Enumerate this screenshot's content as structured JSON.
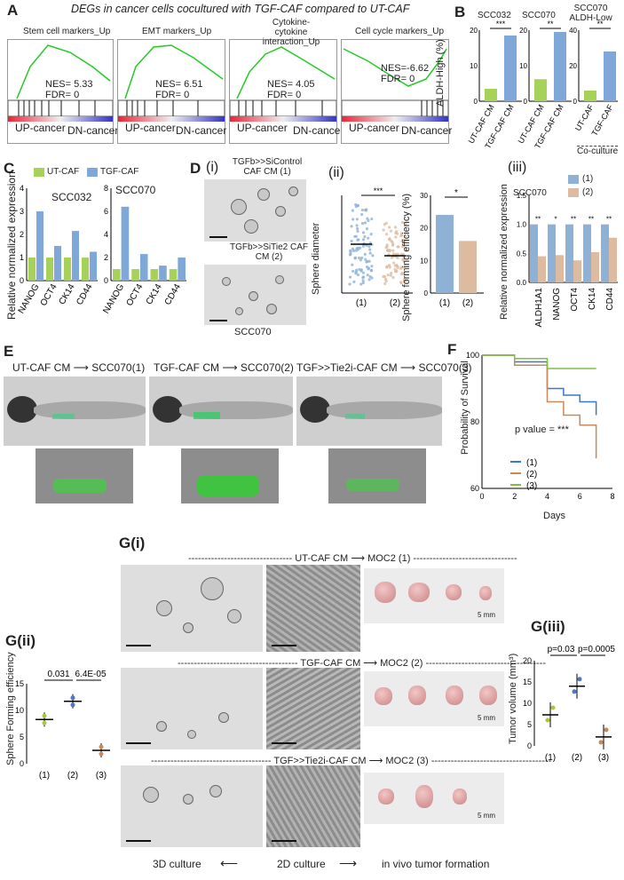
{
  "figure": {
    "panel_a": {
      "label": "A",
      "title": "DEGs in cancer cells cocultured with TGF-CAF compared to UT-CAF",
      "plots": [
        {
          "title": "Stem cell markers_Up",
          "nes": "NES= 5.33",
          "fdr": "FDR= 0"
        },
        {
          "title": "EMT markers_Up",
          "nes": "NES= 6.51",
          "fdr": "FDR= 0"
        },
        {
          "title": "Cytokine- cytokine interaction_Up",
          "nes": "NES= 4.05",
          "fdr": "FDR= 0"
        },
        {
          "title": "Cell cycle markers_Up",
          "nes": "NES=-6.62",
          "fdr": "FDR= 0"
        }
      ],
      "up_label": "UP-cancer",
      "dn_label": "DN-cancer"
    },
    "panel_b": {
      "label": "B",
      "ylabel": "ALDH-High (%)",
      "titles": [
        "SCC032",
        "SCC070",
        "SCC070 ALDH-Low"
      ],
      "categories": [
        "UT-CAF CM",
        "TGF-CAF CM"
      ],
      "cat3": [
        "UT-CAF",
        "TGF-CAF"
      ],
      "coculture": "Co-culture",
      "stars": [
        "***",
        "**",
        "**"
      ]
    },
    "panel_c": {
      "label": "C",
      "legend": [
        "UT-CAF",
        "TGF-CAF"
      ],
      "ylabel": "Relative normalized expression",
      "titles": [
        "SCC032",
        "SCC070"
      ],
      "genes": [
        "NANOG",
        "OCT4",
        "CK14",
        "CD44"
      ]
    },
    "panel_d": {
      "label": "D",
      "roman": [
        "(i)",
        "(ii)",
        "(iii)"
      ],
      "img_titles": [
        "TGFb>>SiControl CAF CM (1)",
        "TGFb>>SiTie2 CAF CM (2)"
      ],
      "img_caption": "SCC070",
      "sphere_ylabel": "Sphere diameter",
      "sphere_stars": "***",
      "eff_ylabel": "Sphere forming efficiency (%)",
      "eff_star": "*",
      "groups": [
        "(1)",
        "(2)"
      ],
      "iii_title": "SCC070",
      "iii_ylabel": "Relative normalized expression",
      "iii_genes": [
        "ALDH1A1",
        "NANOG",
        "OCT4",
        "CK14",
        "CD44"
      ],
      "iii_stars": [
        "**",
        "*",
        "**",
        "**",
        "**"
      ],
      "iii_legend": [
        "(1)",
        "(2)"
      ]
    },
    "panel_e": {
      "label": "E",
      "conditions": [
        "UT-CAF CM",
        "TGF-CAF CM",
        "TGF>>Tie2i-CAF CM"
      ],
      "arrow": "⟶",
      "targets": [
        "SCC070(1)",
        "SCC070(2)",
        "SCC070(3)"
      ]
    },
    "panel_f": {
      "label": "F",
      "ylabel": "Probability of Survival",
      "xlabel": "Days",
      "pval": "p value = ***",
      "legend": [
        "(1)",
        "(2)",
        "(3)"
      ]
    },
    "panel_g": {
      "label_i": "G(i)",
      "label_ii": "G(ii)",
      "label_iii": "G(iii)",
      "rows": [
        "UT-CAF CM",
        "TGF-CAF CM",
        "TGF>>Tie2i-CAF CM"
      ],
      "row_targets": [
        "MOC2 (1)",
        "MOC2 (2)",
        "MOC2 (3)"
      ],
      "arrow": "⟶",
      "scale": "5 mm",
      "bottom": [
        "3D culture",
        "2D culture",
        "in vivo tumor formation"
      ],
      "gii_ylabel": "Sphere Forming efficiency",
      "gii_p": [
        "0.031",
        "6.4E-05"
      ],
      "groups3": [
        "(1)",
        "(2)",
        "(3)"
      ],
      "giii_ylabel": "Tumor volume (mm³)",
      "giii_p": [
        "p=0.03",
        "p=0.0005"
      ]
    },
    "colors": {
      "ut": "#a6d25a",
      "tgf": "#7fa8d8",
      "d1": "#8fb1d6",
      "d2": "#ddbba0",
      "f1": "#3a78c8",
      "f2": "#c9895a",
      "f3": "#7cc23d"
    }
  },
  "chart_data": [
    {
      "id": "B-SCC032",
      "type": "bar",
      "categories": [
        "UT-CAF CM",
        "TGF-CAF CM"
      ],
      "values": [
        3.5,
        18.5
      ],
      "ylim": [
        0,
        20
      ]
    },
    {
      "id": "B-SCC070",
      "type": "bar",
      "categories": [
        "UT-CAF CM",
        "TGF-CAF CM"
      ],
      "values": [
        6.2,
        19.5
      ],
      "ylim": [
        0,
        20
      ]
    },
    {
      "id": "B-ALDH-Low",
      "type": "bar",
      "categories": [
        "UT-CAF",
        "TGF-CAF"
      ],
      "values": [
        6.0,
        28.0
      ],
      "ylim": [
        0,
        40
      ]
    },
    {
      "id": "C-SCC032",
      "type": "bar",
      "categories": [
        "NANOG",
        "OCT4",
        "CK14",
        "CD44"
      ],
      "series": [
        {
          "name": "UT-CAF",
          "values": [
            1.0,
            1.0,
            1.0,
            1.0
          ]
        },
        {
          "name": "TGF-CAF",
          "values": [
            3.0,
            1.5,
            2.15,
            1.25
          ]
        }
      ],
      "ylim": [
        0,
        4
      ]
    },
    {
      "id": "C-SCC070",
      "type": "bar",
      "categories": [
        "NANOG",
        "OCT4",
        "CK14",
        "CD44"
      ],
      "series": [
        {
          "name": "UT-CAF",
          "values": [
            1.0,
            1.0,
            1.0,
            1.0
          ]
        },
        {
          "name": "TGF-CAF",
          "values": [
            6.4,
            2.3,
            1.3,
            2.0
          ]
        }
      ],
      "ylim": [
        0,
        8
      ]
    },
    {
      "id": "D-ii-eff",
      "type": "bar",
      "categories": [
        "(1)",
        "(2)"
      ],
      "values": [
        24,
        16
      ],
      "ylim": [
        0,
        30
      ]
    },
    {
      "id": "D-iii",
      "type": "bar",
      "categories": [
        "ALDH1A1",
        "NANOG",
        "OCT4",
        "CK14",
        "CD44"
      ],
      "series": [
        {
          "name": "(1)",
          "values": [
            1,
            1,
            1,
            1,
            1
          ]
        },
        {
          "name": "(2)",
          "values": [
            0.45,
            0.47,
            0.38,
            0.52,
            0.77
          ]
        }
      ],
      "ylim": [
        0,
        1.5
      ]
    },
    {
      "id": "F",
      "type": "line",
      "x": [
        0,
        2,
        4,
        5,
        6,
        7
      ],
      "series": [
        {
          "name": "(1)",
          "values": [
            100,
            98,
            90,
            88,
            86,
            82
          ]
        },
        {
          "name": "(2)",
          "values": [
            100,
            97,
            86,
            82,
            79,
            69
          ]
        },
        {
          "name": "(3)",
          "values": [
            100,
            99,
            96,
            96,
            96,
            96
          ]
        }
      ],
      "xlim": [
        0,
        8
      ],
      "ylim": [
        60,
        100
      ]
    },
    {
      "id": "G-ii",
      "type": "scatter",
      "categories": [
        "(1)",
        "(2)",
        "(3)"
      ],
      "values": [
        8.3,
        11.7,
        2.5
      ],
      "ylim": [
        0,
        15
      ]
    },
    {
      "id": "G-iii",
      "type": "scatter",
      "categories": [
        "(1)",
        "(2)",
        "(3)"
      ],
      "values": [
        7.3,
        14.0,
        2.1
      ],
      "ylim": [
        0,
        20
      ]
    }
  ]
}
